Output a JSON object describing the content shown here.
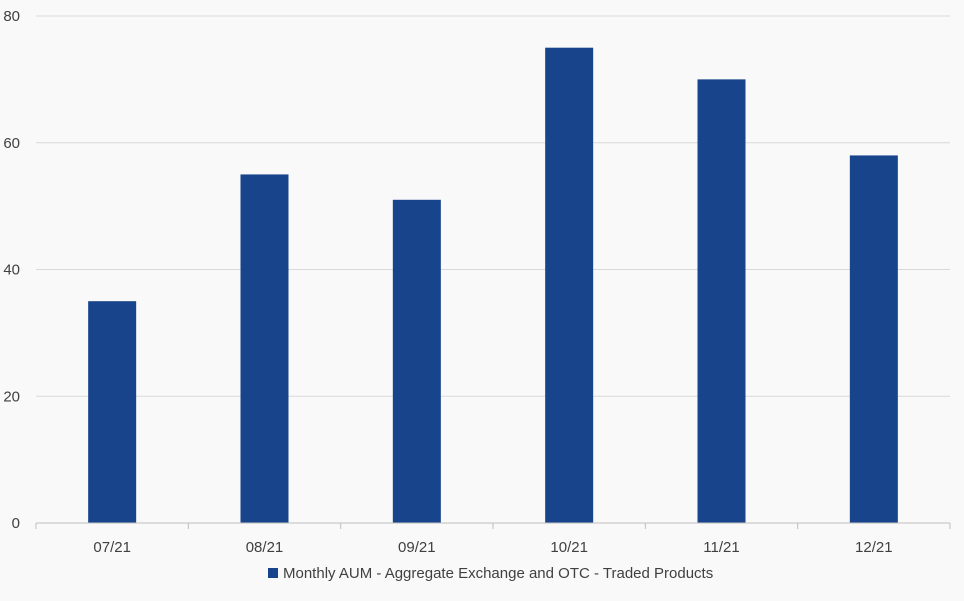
{
  "chart_data": {
    "type": "bar",
    "categories": [
      "07/21",
      "08/21",
      "09/21",
      "10/21",
      "11/21",
      "12/21"
    ],
    "series": [
      {
        "name": "Monthly AUM - Aggregate Exchange and OTC - Traded Products",
        "values": [
          35,
          55,
          51,
          75,
          70,
          58
        ],
        "color": "#17448a"
      }
    ],
    "ylim": [
      0,
      80
    ],
    "yticks": [
      0,
      20,
      40,
      60,
      80
    ],
    "grid": true,
    "legend": "bottom",
    "gridline_color": "#d9d9d9",
    "axis_color": "#bfbfbf"
  }
}
